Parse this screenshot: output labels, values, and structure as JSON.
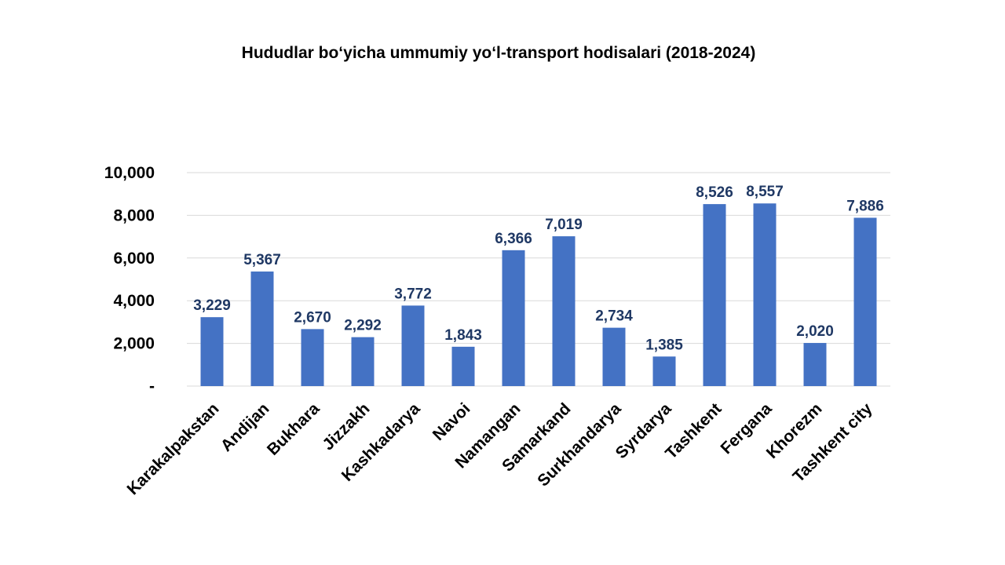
{
  "chart_data": {
    "type": "bar",
    "title": "Hududlar bo‘yicha ummumiy yo‘l-transport hodisalari (2018-2024)",
    "xlabel": "",
    "ylabel": "",
    "categories": [
      "Karakalpakstan",
      "Andijan",
      "Bukhara",
      "Jizzakh",
      "Kashkadarya",
      "Navoi",
      "Namangan",
      "Samarkand",
      "Surkhandarya",
      "Syrdarya",
      "Tashkent",
      "Fergana",
      "Khorezm",
      "Tashkent city"
    ],
    "values": [
      3229,
      5367,
      2670,
      2292,
      3772,
      1843,
      6366,
      7019,
      2734,
      1385,
      8526,
      8557,
      2020,
      7886
    ],
    "data_labels": [
      "3,229",
      "5,367",
      "2,670",
      "2,292",
      "3,772",
      "1,843",
      "6,366",
      "7,019",
      "2,734",
      "1,385",
      "8,526",
      "8,557",
      "2,020",
      "7,886"
    ],
    "ylim": [
      0,
      10000
    ],
    "yticks": [
      0,
      2000,
      4000,
      6000,
      8000,
      10000
    ],
    "ytick_labels": [
      "-",
      "2,000",
      "4,000",
      "6,000",
      "8,000",
      "10,000"
    ],
    "grid": true,
    "legend": "none",
    "bar_color": "#4472C4",
    "label_color": "#1F3864",
    "grid_color": "#D9D9D9"
  }
}
